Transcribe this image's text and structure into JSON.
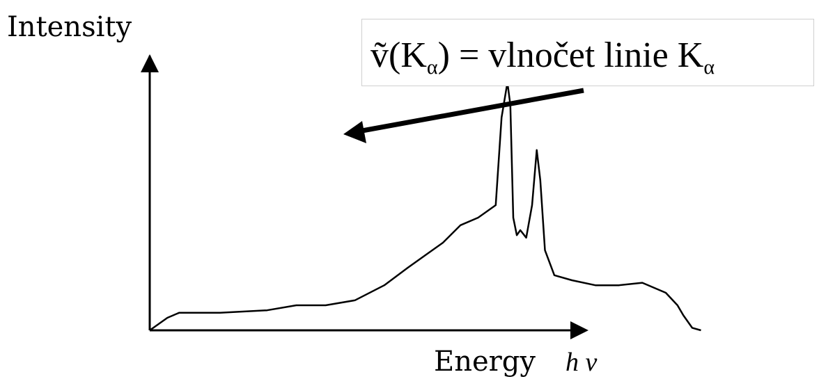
{
  "chart_data": {
    "type": "line",
    "title": "",
    "ylabel": "Intensity",
    "xlabel": "Energy",
    "xlabel_symbol": "h v",
    "xlim": [
      0,
      100
    ],
    "ylim": [
      0,
      100
    ],
    "grid": false,
    "legend": "none",
    "line_color": "#000000",
    "series": [
      {
        "x": [
          0,
          3,
          5,
          8,
          12,
          20,
          25,
          30,
          35,
          40,
          44,
          47,
          50,
          53,
          56,
          59,
          60,
          61,
          61.5,
          62,
          62.6,
          63.2,
          64.2,
          65.2,
          66,
          66.6,
          67.4,
          69,
          72,
          76,
          80,
          84,
          88,
          90,
          91,
          92.5,
          94
        ],
        "y": [
          0,
          5,
          7,
          7,
          7,
          8,
          10,
          10,
          12,
          18,
          25,
          30,
          35,
          42,
          45,
          50,
          85,
          99,
          90,
          45,
          38,
          40,
          37,
          50,
          72,
          60,
          32,
          22,
          20,
          18,
          18,
          19,
          15,
          10,
          6,
          1,
          0
        ]
      }
    ],
    "annotation": {
      "symbol": "ṽ",
      "line": "K",
      "greek": "α",
      "text": "= vlnočet linie",
      "points_to": {
        "x": 61.5,
        "y": 90
      }
    }
  }
}
